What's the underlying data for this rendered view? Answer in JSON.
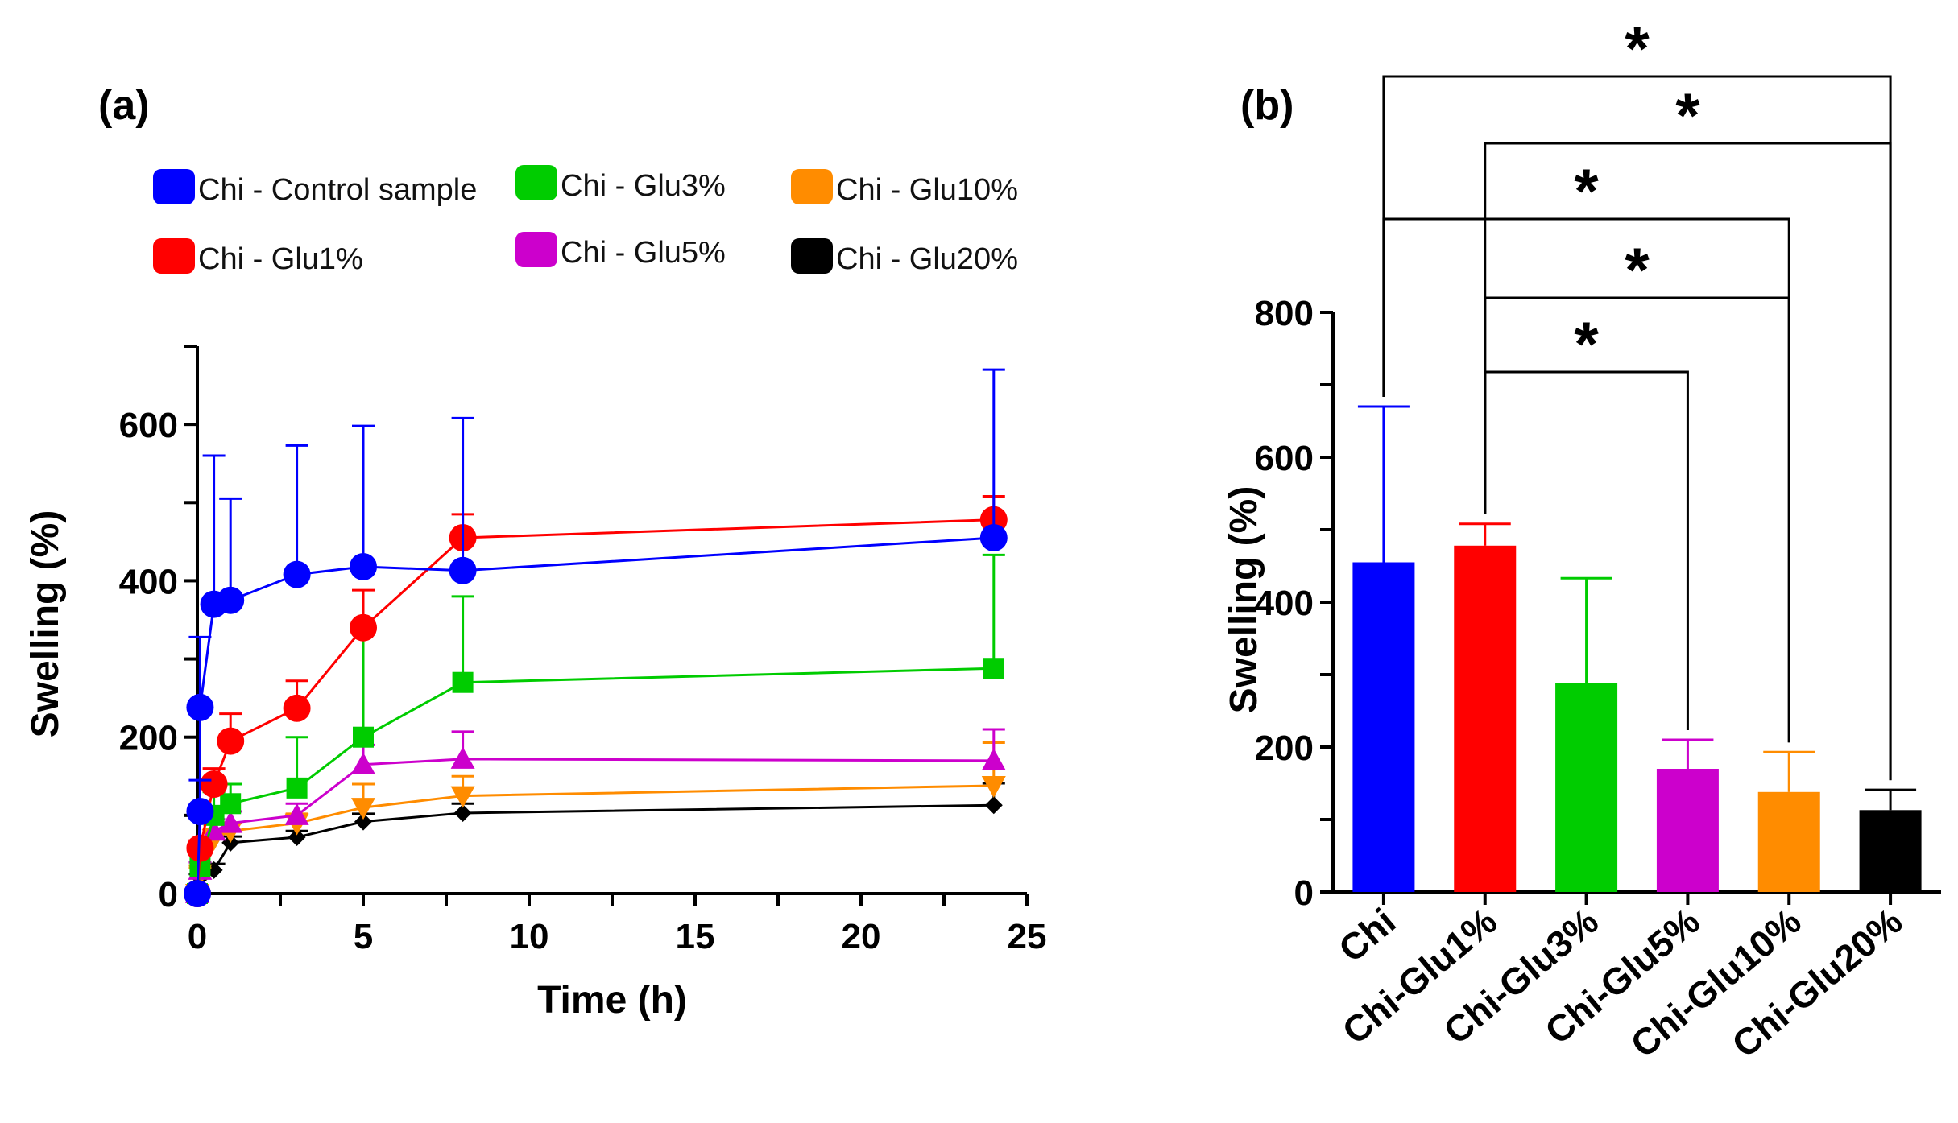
{
  "chart_data": [
    {
      "type": "line",
      "panel_label": "(a)",
      "xlabel": "Time (h)",
      "ylabel": "Swelling (%)",
      "xlim": [
        0,
        25
      ],
      "ylim": [
        0,
        700
      ],
      "xticks": [
        "0",
        "5",
        "10",
        "15",
        "20",
        "25"
      ],
      "yticks": [
        "0",
        "200",
        "400",
        "600"
      ],
      "legend_position": "top",
      "x": [
        0,
        0.083,
        0.5,
        1,
        3,
        5,
        8,
        24
      ],
      "series": [
        {
          "name": "Chi - Control sample",
          "color": "#0000ff",
          "marker": "circle",
          "values": [
            0,
            105,
            238,
            370,
            375,
            408,
            418,
            413,
            455
          ],
          "x": [
            0,
            0.083,
            0.083,
            0.5,
            1,
            3,
            5,
            8,
            24
          ],
          "error": [
            0,
            40,
            90,
            190,
            130,
            165,
            180,
            195,
            215
          ]
        },
        {
          "name": "Chi - Glu1%",
          "color": "#ff0000",
          "marker": "circle",
          "values": [
            0,
            58,
            140,
            195,
            237,
            340,
            455,
            478
          ],
          "error": [
            0,
            10,
            20,
            35,
            35,
            48,
            30,
            30
          ]
        },
        {
          "name": "Chi - Glu3%",
          "color": "#00cc00",
          "marker": "square",
          "values": [
            0,
            35,
            100,
            115,
            135,
            200,
            270,
            288
          ],
          "error": [
            0,
            15,
            30,
            25,
            65,
            140,
            110,
            145
          ]
        },
        {
          "name": "Chi - Glu5%",
          "color": "#cc00cc",
          "marker": "triangle-up",
          "values": [
            0,
            30,
            80,
            90,
            100,
            165,
            172,
            170
          ],
          "error": [
            0,
            10,
            15,
            15,
            15,
            25,
            35,
            40
          ]
        },
        {
          "name": "Chi - Glu10%",
          "color": "#ff8c00",
          "marker": "triangle-down",
          "values": [
            0,
            25,
            70,
            80,
            90,
            110,
            125,
            138
          ],
          "error": [
            0,
            8,
            12,
            10,
            12,
            30,
            25,
            55
          ]
        },
        {
          "name": "Chi - Glu20%",
          "color": "#000000",
          "marker": "diamond",
          "values": [
            0,
            20,
            30,
            65,
            72,
            92,
            103,
            113
          ],
          "error": [
            0,
            5,
            8,
            8,
            8,
            10,
            12,
            28
          ]
        }
      ]
    },
    {
      "type": "bar",
      "panel_label": "(b)",
      "ylabel": "Swelling (%)",
      "ylim": [
        0,
        800
      ],
      "yticks": [
        "0",
        "200",
        "400",
        "600",
        "800"
      ],
      "categories": [
        "Chi",
        "Chi-Glu1%",
        "Chi-Glu3%",
        "Chi-Glu5%",
        "Chi-Glu10%",
        "Chi-Glu20%"
      ],
      "values": [
        455,
        478,
        288,
        170,
        138,
        113
      ],
      "errors": [
        215,
        30,
        145,
        40,
        55,
        28
      ],
      "colors": [
        "#0000ff",
        "#ff0000",
        "#00cc00",
        "#cc00cc",
        "#ff8c00",
        "#000000"
      ],
      "significance": [
        {
          "from": 0,
          "to": 5,
          "label": "*"
        },
        {
          "from": 1,
          "to": 5,
          "label": "*"
        },
        {
          "from": 0,
          "to": 4,
          "label": "*"
        },
        {
          "from": 1,
          "to": 4,
          "label": "*"
        },
        {
          "from": 1,
          "to": 3,
          "label": "*"
        }
      ]
    }
  ]
}
